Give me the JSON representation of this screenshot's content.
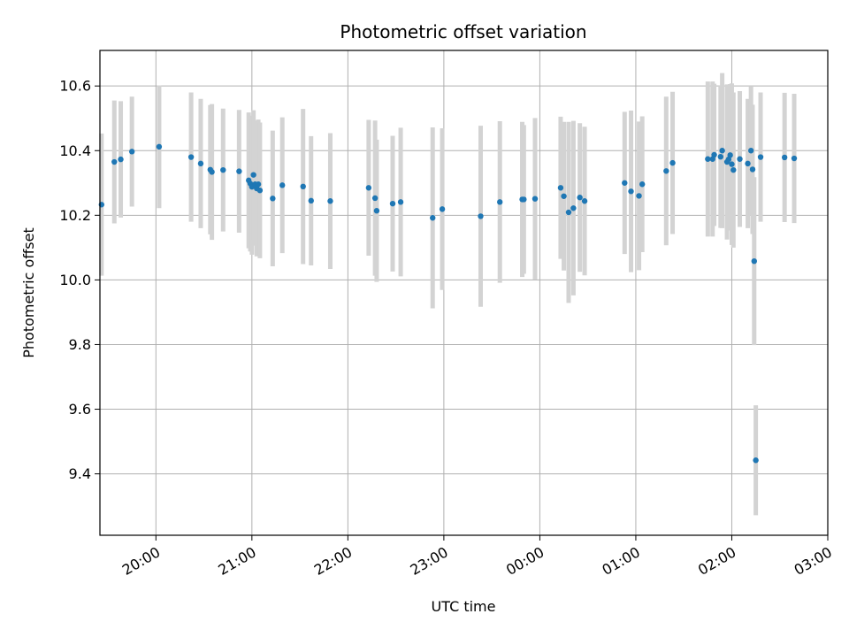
{
  "chart_data": {
    "type": "scatter",
    "title": "Photometric offset variation",
    "xlabel": "UTC time",
    "ylabel": "Photometric offset",
    "x_ticks": [
      "20:00",
      "21:00",
      "22:00",
      "23:00",
      "00:00",
      "01:00",
      "02:00",
      "03:00"
    ],
    "y_ticks": [
      "9.4",
      "9.6",
      "9.8",
      "10.0",
      "10.2",
      "10.4",
      "10.6"
    ],
    "xlim": [
      "19:25",
      "03:00"
    ],
    "ylim": [
      9.21,
      10.71
    ],
    "grid": true,
    "errorbar_color": "#d3d3d3",
    "point_color": "#1f77b4",
    "series": [
      {
        "x": [
          "19:26",
          "19:34",
          "19:38",
          "19:45",
          "20:02",
          "20:22",
          "20:28",
          "20:34",
          "20:35",
          "20:42",
          "20:52",
          "20:58",
          "20:59",
          "21:00",
          "21:01",
          "21:02",
          "21:03",
          "21:04",
          "21:05",
          "21:13",
          "21:19",
          "21:32",
          "21:37",
          "21:49",
          "22:13",
          "22:17",
          "22:18",
          "22:28",
          "22:33",
          "22:53",
          "22:59",
          "23:23",
          "23:35",
          "23:49",
          "23:50",
          "23:57",
          "00:13",
          "00:15",
          "00:18",
          "00:21",
          "00:25",
          "00:28",
          "00:53",
          "00:57",
          "01:02",
          "01:04",
          "01:19",
          "01:23",
          "01:45",
          "01:48",
          "01:49",
          "01:53",
          "01:54",
          "01:57",
          "01:58",
          "01:59",
          "02:00",
          "02:01",
          "02:05",
          "02:10",
          "02:12",
          "02:13",
          "02:14",
          "02:15",
          "02:18",
          "02:33",
          "02:39"
        ],
        "y": [
          10.233,
          10.365,
          10.373,
          10.397,
          10.412,
          10.38,
          10.36,
          10.341,
          10.334,
          10.34,
          10.336,
          10.308,
          10.298,
          10.288,
          10.325,
          10.296,
          10.283,
          10.296,
          10.277,
          10.252,
          10.293,
          10.289,
          10.245,
          10.244,
          10.285,
          10.253,
          10.214,
          10.236,
          10.241,
          10.192,
          10.219,
          10.197,
          10.241,
          10.249,
          10.249,
          10.251,
          10.285,
          10.259,
          10.209,
          10.222,
          10.255,
          10.244,
          10.3,
          10.274,
          10.26,
          10.296,
          10.337,
          10.362,
          10.374,
          10.374,
          10.387,
          10.381,
          10.4,
          10.365,
          10.373,
          10.386,
          10.358,
          10.34,
          10.374,
          10.36,
          10.4,
          10.342,
          10.058,
          9.442,
          10.38,
          10.379,
          10.376
        ],
        "err": [
          0.22,
          0.19,
          0.18,
          0.17,
          0.19,
          0.2,
          0.2,
          0.2,
          0.21,
          0.19,
          0.19,
          0.21,
          0.21,
          0.21,
          0.2,
          0.19,
          0.21,
          0.2,
          0.21,
          0.21,
          0.21,
          0.24,
          0.2,
          0.21,
          0.21,
          0.24,
          0.22,
          0.21,
          0.23,
          0.28,
          0.25,
          0.28,
          0.25,
          0.24,
          0.23,
          0.25,
          0.22,
          0.23,
          0.28,
          0.27,
          0.23,
          0.23,
          0.22,
          0.25,
          0.23,
          0.21,
          0.23,
          0.22,
          0.24,
          0.24,
          0.22,
          0.22,
          0.24,
          0.24,
          0.22,
          0.22,
          0.25,
          0.24,
          0.21,
          0.2,
          0.2,
          0.2,
          0.26,
          0.17,
          0.2,
          0.2,
          0.2
        ]
      }
    ]
  }
}
